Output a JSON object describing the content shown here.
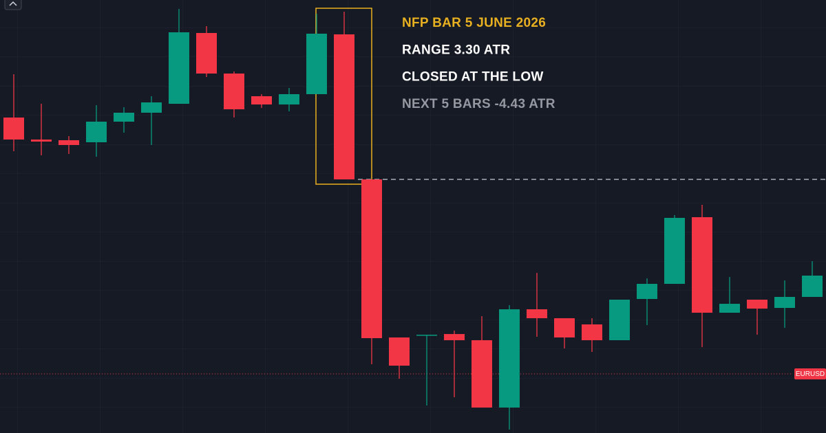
{
  "chart_data": {
    "type": "candlestick",
    "ylim": [
      0,
      630
    ],
    "open": [
      459,
      427,
      426,
      423,
      453,
      466,
      479,
      582,
      523,
      490,
      478,
      493,
      580,
      369,
      139,
      143,
      144,
      135,
      37,
      180,
      167,
      158,
      135,
      195,
      217,
      314,
      175,
      194,
      182,
      198
    ],
    "high": [
      522,
      479,
      432,
      477,
      474,
      490,
      617,
      592,
      526,
      493,
      502,
      610,
      613,
      369,
      139,
      143,
      149,
      170,
      186,
      233,
      167,
      167,
      194,
      225,
      317,
      332,
      227,
      194,
      222,
      250
    ],
    "low": [
      410,
      404,
      406,
      402,
      437,
      419,
      479,
      518,
      459,
      473,
      468,
      493,
      369,
      100,
      79,
      40,
      52,
      37,
      5,
      140,
      123,
      118,
      135,
      157,
      217,
      125,
      175,
      143,
      153,
      198
    ],
    "close": [
      427,
      424,
      419,
      453,
      466,
      481,
      583,
      523,
      471,
      478,
      493,
      581,
      369,
      138,
      98,
      143,
      135,
      37,
      180,
      167,
      139,
      135,
      194,
      217,
      313,
      175,
      188,
      181,
      198,
      229
    ],
    "up_color": "#089981",
    "down_color": "#f23645",
    "highlight_index": 12,
    "annotations": [
      "NFP BAR  5 JUNE 2026",
      "RANGE 3.30 ATR",
      "CLOSED AT THE LOW",
      "NEXT 5 BARS -4.43 ATR"
    ],
    "annotation_colors": [
      "#e8b020",
      "#ffffff",
      "#ffffff",
      "#9598a1"
    ],
    "price_line": {
      "value": 86,
      "label": "EURUSD",
      "color": "#f23645"
    }
  }
}
